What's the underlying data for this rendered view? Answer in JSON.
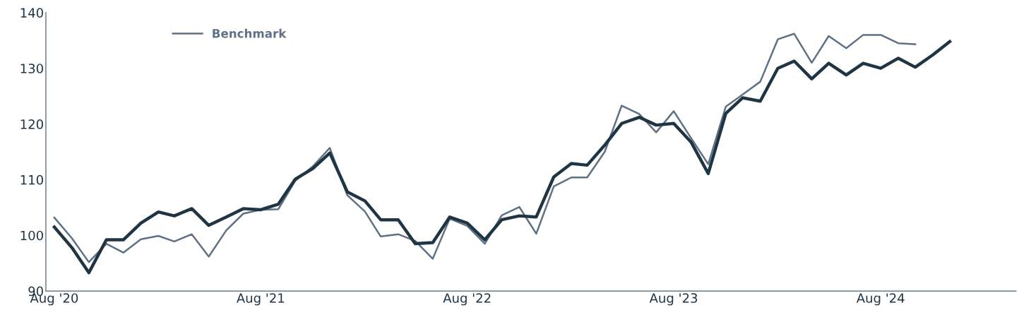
{
  "chart_data": {
    "type": "line",
    "x": [
      "2020-08",
      "2020-09",
      "2020-10",
      "2020-11",
      "2020-12",
      "2021-01",
      "2021-02",
      "2021-03",
      "2021-04",
      "2021-05",
      "2021-06",
      "2021-07",
      "2021-08",
      "2021-09",
      "2021-10",
      "2021-11",
      "2021-12",
      "2022-01",
      "2022-02",
      "2022-03",
      "2022-04",
      "2022-05",
      "2022-06",
      "2022-07",
      "2022-08",
      "2022-09",
      "2022-10",
      "2022-11",
      "2022-12",
      "2023-01",
      "2023-02",
      "2023-03",
      "2023-04",
      "2023-05",
      "2023-06",
      "2023-07",
      "2023-08",
      "2023-09",
      "2023-10",
      "2023-11",
      "2023-12",
      "2024-01",
      "2024-02",
      "2024-03",
      "2024-04",
      "2024-05",
      "2024-06",
      "2024-07",
      "2024-08",
      "2024-09",
      "2024-10",
      "2024-11",
      "2024-12"
    ],
    "series": [
      {
        "color": "#1f3544",
        "values": [
          101.5,
          97.8,
          93.3,
          99.2,
          99.2,
          102.2,
          104.2,
          103.5,
          104.8,
          101.8,
          103.3,
          104.8,
          104.6,
          105.6,
          110.1,
          112.0,
          114.8,
          107.8,
          106.2,
          102.8,
          102.8,
          98.5,
          98.7,
          103.3,
          102.2,
          99.2,
          102.8,
          103.5,
          103.3,
          110.5,
          112.9,
          112.6,
          116.2,
          120.1,
          121.2,
          119.8,
          120.1,
          116.7,
          111.1,
          121.9,
          124.7,
          124.1,
          130.0,
          131.3,
          128.1,
          130.9,
          128.8,
          130.9,
          130.0,
          131.8,
          130.2,
          132.4,
          134.8
        ]
      },
      {
        "name": "Benchmark",
        "color": "#5f7184",
        "values": [
          103.2,
          99.5,
          95.2,
          98.5,
          96.9,
          99.3,
          99.9,
          98.9,
          100.2,
          96.2,
          100.9,
          103.9,
          104.6,
          104.7,
          109.8,
          112.4,
          115.7,
          107.2,
          104.3,
          99.8,
          100.2,
          99.0,
          95.8,
          103.0,
          101.7,
          98.5,
          103.6,
          105.1,
          100.3,
          108.8,
          110.4,
          110.4,
          115.0,
          123.3,
          121.8,
          118.5,
          122.3,
          117.4,
          112.8,
          123.1,
          125.3,
          127.6,
          135.2,
          136.2,
          131.0,
          135.8,
          133.6,
          136.0,
          136.0,
          134.5,
          134.3,
          null,
          null
        ]
      }
    ],
    "xlim": [
      "2020-07-17",
      "2025-03-28"
    ],
    "xticks": [
      {
        "value": "2020-08",
        "label": "Aug '20"
      },
      {
        "value": "2021-08",
        "label": "Aug '21"
      },
      {
        "value": "2022-08",
        "label": "Aug '22"
      },
      {
        "value": "2023-08",
        "label": "Aug '23"
      },
      {
        "value": "2024-08",
        "label": "Aug '24"
      }
    ],
    "ylim": [
      90,
      140
    ],
    "yticks": [
      90,
      100,
      110,
      120,
      130,
      140
    ],
    "grid": false,
    "legend": "top left",
    "marker": "none",
    "line_style": "solid"
  }
}
